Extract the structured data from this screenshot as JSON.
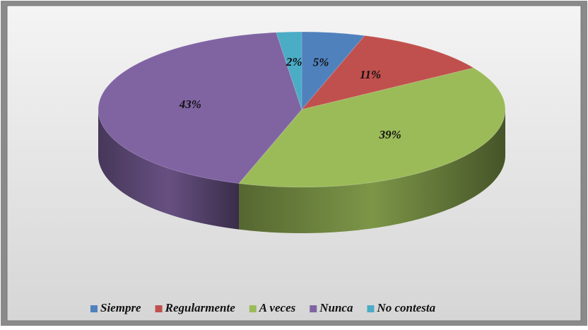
{
  "chart_data": {
    "type": "pie3d",
    "categories": [
      "Siempre",
      "Regularmente",
      "A veces",
      "Nunca",
      "No contesta"
    ],
    "values": [
      5,
      11,
      39,
      43,
      2
    ],
    "value_labels": [
      "5%",
      "11%",
      "39%",
      "43%",
      "2%"
    ],
    "colors": [
      "#4f81bd",
      "#c0504d",
      "#9bbb59",
      "#8064a2",
      "#4bacc6"
    ],
    "legend": "bottom"
  }
}
